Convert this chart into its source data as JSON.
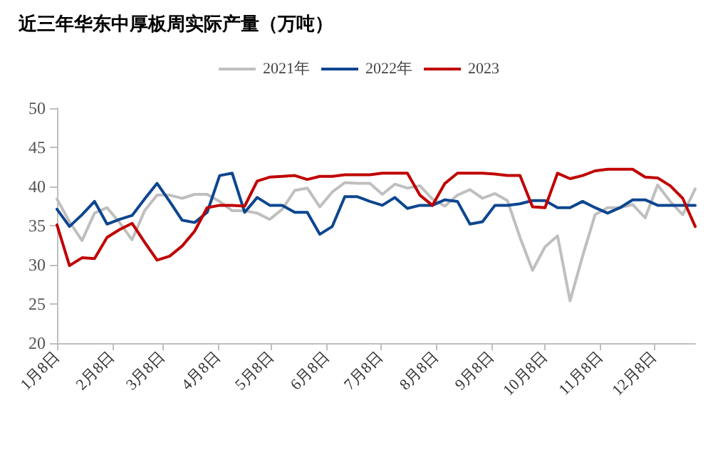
{
  "chart_data": {
    "type": "line",
    "title": "近三年华东中厚板周实际产量（万吨）",
    "x": [
      "--01-08",
      "--01-15",
      "--01-22",
      "--01-29",
      "--02-05",
      "--02-12",
      "--02-19",
      "--02-26",
      "--03-05",
      "--03-12",
      "--03-19",
      "--03-26",
      "--04-02",
      "--04-09",
      "--04-16",
      "--04-23",
      "--04-30",
      "--05-07",
      "--05-14",
      "--05-21",
      "--05-28",
      "--06-04",
      "--06-11",
      "--06-18",
      "--06-25",
      "--07-02",
      "--07-09",
      "--07-16",
      "--07-23",
      "--07-30",
      "--08-06",
      "--08-13",
      "--08-20",
      "--08-27",
      "--09-03",
      "--09-10",
      "--09-17",
      "--09-24",
      "--10-01",
      "--10-08",
      "--10-15",
      "--10-22",
      "--10-29",
      "--11-05",
      "--11-12",
      "--11-19",
      "--11-26",
      "--12-03",
      "--12-10",
      "--12-17",
      "--12-24",
      "--12-31"
    ],
    "series": [
      {
        "name": "2021年",
        "color": "#bfbfbf",
        "values": [
          38.4,
          35.5,
          33.1,
          36.6,
          37.3,
          35.4,
          33.2,
          36.9,
          38.9,
          38.9,
          38.5,
          39.0,
          39.0,
          38.1,
          36.9,
          36.9,
          36.6,
          35.8,
          37.1,
          39.5,
          39.8,
          37.4,
          39.3,
          40.5,
          40.4,
          40.4,
          39.0,
          40.3,
          39.8,
          40.1,
          38.4,
          37.5,
          38.9,
          39.6,
          38.5,
          39.1,
          38.2,
          33.5,
          29.3,
          32.3,
          33.7,
          25.4,
          31.1,
          36.4,
          37.3,
          37.3,
          37.7,
          36.0,
          40.2,
          38.1,
          36.4,
          39.7
        ]
      },
      {
        "name": "2022年",
        "color": "#0d4690",
        "values": [
          37.1,
          34.9,
          36.4,
          38.1,
          35.2,
          35.8,
          36.3,
          38.4,
          40.4,
          38.1,
          35.7,
          35.4,
          36.7,
          41.4,
          41.7,
          36.7,
          38.6,
          37.6,
          37.6,
          36.7,
          36.7,
          33.9,
          34.9,
          38.7,
          38.7,
          38.1,
          37.6,
          38.6,
          37.2,
          37.6,
          37.6,
          38.3,
          38.1,
          35.2,
          35.5,
          37.6,
          37.6,
          37.8,
          38.2,
          38.2,
          37.3,
          37.3,
          38.1,
          37.3,
          36.6,
          37.3,
          38.3,
          38.3,
          37.6,
          37.6,
          37.6,
          37.6
        ]
      },
      {
        "name": "2023",
        "color": "#c00000",
        "values": [
          35.1,
          29.9,
          30.9,
          30.8,
          33.5,
          34.5,
          35.3,
          32.9,
          30.6,
          31.1,
          32.4,
          34.3,
          37.3,
          37.6,
          37.6,
          37.5,
          40.7,
          41.2,
          41.3,
          41.4,
          40.9,
          41.3,
          41.3,
          41.5,
          41.5,
          41.5,
          41.7,
          41.7,
          41.7,
          38.9,
          37.6,
          40.4,
          41.7,
          41.7,
          41.7,
          41.6,
          41.4,
          41.4,
          37.4,
          37.3,
          41.7,
          41.0,
          41.4,
          42.0,
          42.2,
          42.2,
          42.2,
          41.2,
          41.1,
          40.1,
          38.5,
          34.9
        ]
      }
    ],
    "xlim": [
      "--01-08",
      "--12-31"
    ],
    "xticks": [
      {
        "value": "--01-08",
        "label": "1月8日"
      },
      {
        "value": "--02-08",
        "label": "2月8日"
      },
      {
        "value": "--03-08",
        "label": "3月8日"
      },
      {
        "value": "--04-08",
        "label": "4月8日"
      },
      {
        "value": "--05-08",
        "label": "5月8日"
      },
      {
        "value": "--06-08",
        "label": "6月8日"
      },
      {
        "value": "--07-08",
        "label": "7月8日"
      },
      {
        "value": "--08-08",
        "label": "8月8日"
      },
      {
        "value": "--09-08",
        "label": "9月8日"
      },
      {
        "value": "--10-08",
        "label": "10月8日"
      },
      {
        "value": "--11-08",
        "label": "11月8日"
      },
      {
        "value": "--12-08",
        "label": "12月8日"
      }
    ],
    "ylim": [
      20,
      50
    ],
    "yticks": [
      20,
      25,
      30,
      35,
      40,
      45,
      50
    ],
    "grid": false,
    "legend": "top",
    "marker": "none",
    "line_style": "solid"
  }
}
